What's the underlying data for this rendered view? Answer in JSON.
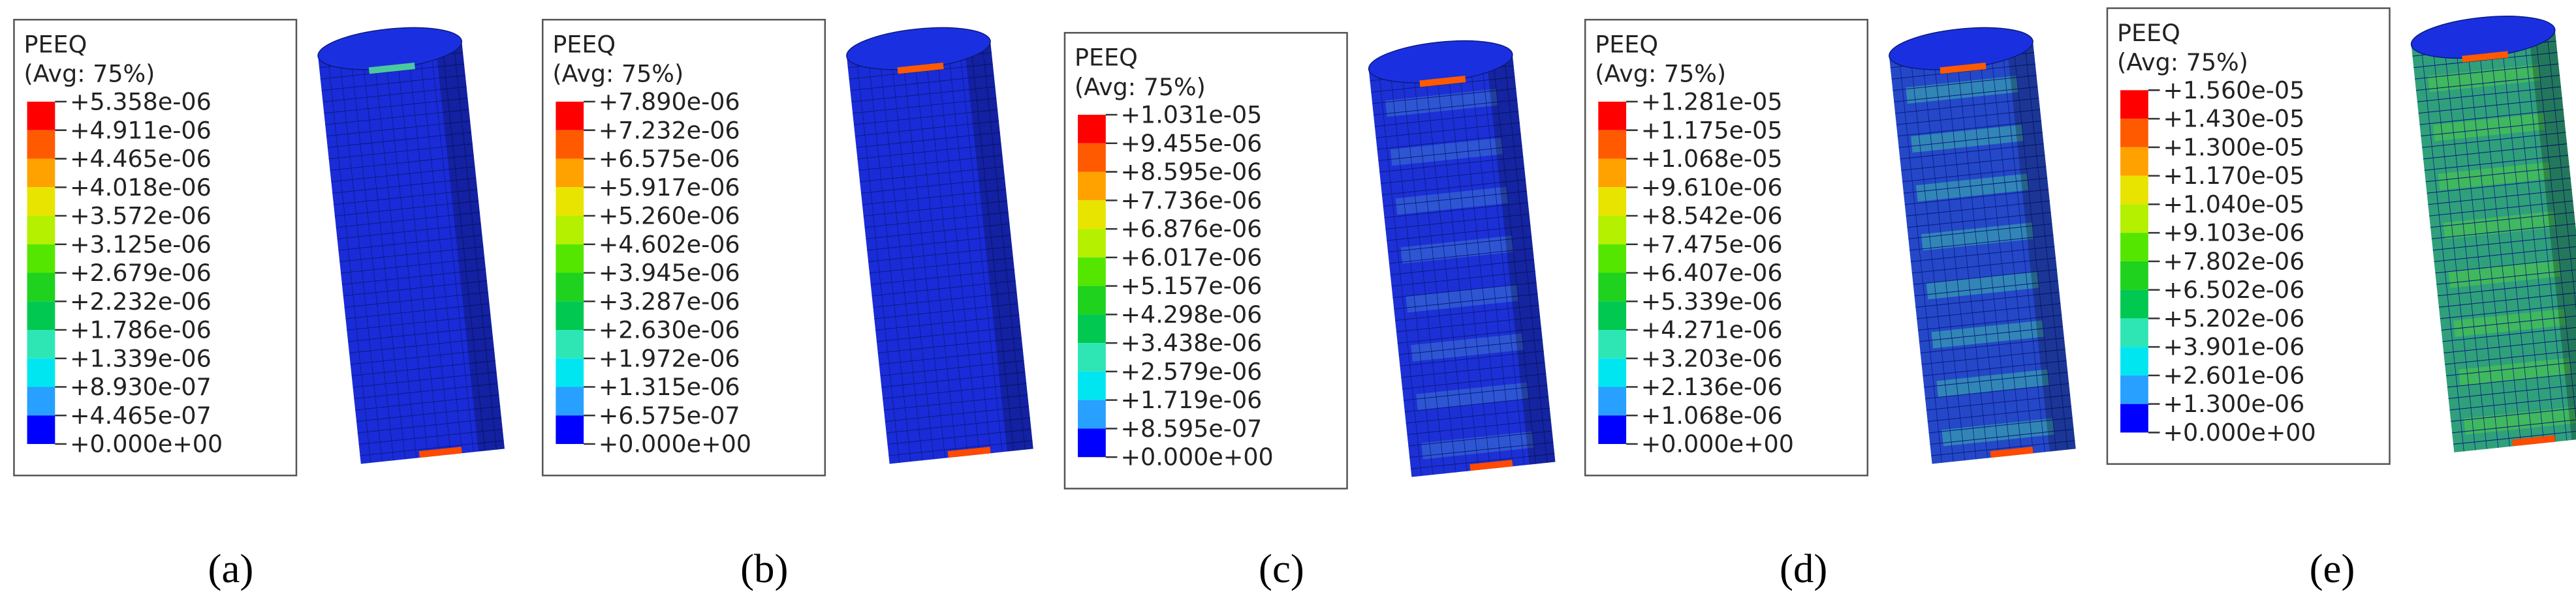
{
  "panels": [
    {
      "legend": {
        "title": "PEEQ",
        "subtitle": "(Avg: 75%)",
        "labels": [
          "+5.358e-06",
          "+4.911e-06",
          "+4.465e-06",
          "+4.018e-06",
          "+3.572e-06",
          "+3.125e-06",
          "+2.679e-06",
          "+2.232e-06",
          "+1.786e-06",
          "+1.339e-06",
          "+8.930e-07",
          "+4.465e-07",
          "+0.000e+00"
        ]
      },
      "caption": "(a)"
    },
    {
      "legend": {
        "title": "PEEQ",
        "subtitle": "(Avg: 75%)",
        "labels": [
          "+7.890e-06",
          "+7.232e-06",
          "+6.575e-06",
          "+5.917e-06",
          "+5.260e-06",
          "+4.602e-06",
          "+3.945e-06",
          "+3.287e-06",
          "+2.630e-06",
          "+1.972e-06",
          "+1.315e-06",
          "+6.575e-07",
          "+0.000e+00"
        ]
      },
      "caption": "(b)"
    },
    {
      "legend": {
        "title": "PEEQ",
        "subtitle": "(Avg: 75%)",
        "labels": [
          "+1.031e-05",
          "+9.455e-06",
          "+8.595e-06",
          "+7.736e-06",
          "+6.876e-06",
          "+6.017e-06",
          "+5.157e-06",
          "+4.298e-06",
          "+3.438e-06",
          "+2.579e-06",
          "+1.719e-06",
          "+8.595e-07",
          "+0.000e+00"
        ]
      },
      "caption": "(c)"
    },
    {
      "legend": {
        "title": "PEEQ",
        "subtitle": "(Avg: 75%)",
        "labels": [
          "+1.281e-05",
          "+1.175e-05",
          "+1.068e-05",
          "+9.610e-06",
          "+8.542e-06",
          "+7.475e-06",
          "+6.407e-06",
          "+5.339e-06",
          "+4.271e-06",
          "+3.203e-06",
          "+2.136e-06",
          "+1.068e-06",
          "+0.000e+00"
        ]
      },
      "caption": "(d)"
    },
    {
      "legend": {
        "title": "PEEQ",
        "subtitle": "(Avg: 75%)",
        "labels": [
          "+1.560e-05",
          "+1.430e-05",
          "+1.300e-05",
          "+1.170e-05",
          "+1.040e-05",
          "+9.103e-06",
          "+7.802e-06",
          "+6.502e-06",
          "+5.202e-06",
          "+3.901e-06",
          "+2.601e-06",
          "+1.300e-06",
          "+0.000e+00"
        ]
      },
      "caption": "(e)"
    }
  ]
}
